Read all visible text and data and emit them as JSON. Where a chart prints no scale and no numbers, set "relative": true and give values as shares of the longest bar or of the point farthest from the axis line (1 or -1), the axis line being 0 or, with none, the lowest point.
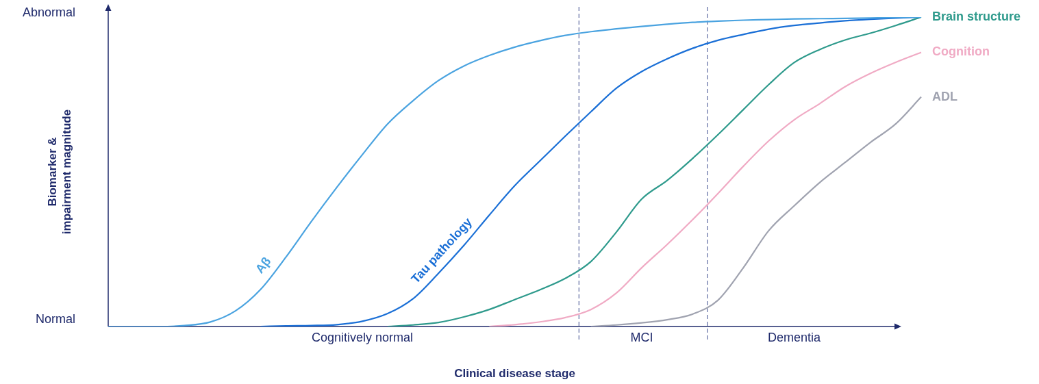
{
  "chart_data": {
    "type": "line",
    "relative": true,
    "xlabel": "Clinical disease stage",
    "ylabel": "Biomarker & impairment magnitude",
    "categories": [
      null,
      null,
      null,
      null,
      null,
      null,
      null,
      null,
      null,
      null,
      "Cognitively normal",
      null,
      null,
      null,
      null,
      null,
      null,
      null,
      null,
      null,
      null,
      "MCI",
      null,
      null,
      null,
      null,
      null,
      "Dementia",
      null,
      null,
      null,
      null,
      null
    ],
    "annotations": [
      "Abnormal",
      "Normal"
    ],
    "grid": false,
    "legend": false,
    "marker": "none",
    "series": [
      {
        "name": "Aβ",
        "color": "#4aa3e0",
        "values": [
          0,
          0,
          0,
          0.003,
          0.014,
          0.05,
          0.12,
          0.225,
          0.34,
          0.45,
          0.555,
          0.655,
          0.73,
          0.795,
          0.842,
          0.876,
          0.903,
          0.924,
          0.941,
          0.953,
          0.962,
          0.97,
          0.977,
          0.983,
          0.987,
          0.99,
          0.992,
          0.994,
          0.995,
          0.996,
          0.997,
          0.999,
          1
        ]
      },
      {
        "name": "Tau pathology",
        "color": "#1a6fd6",
        "values": [
          null,
          null,
          null,
          null,
          null,
          null,
          0,
          0.002,
          0.003,
          0.006,
          0.017,
          0.042,
          0.09,
          0.172,
          0.262,
          0.36,
          0.455,
          0.536,
          0.616,
          0.694,
          0.77,
          0.824,
          0.865,
          0.899,
          0.925,
          0.944,
          0.961,
          0.973,
          0.981,
          0.988,
          0.993,
          0.997,
          1
        ]
      },
      {
        "name": "Brain structure",
        "color": "#2e9a8c",
        "values": [
          null,
          null,
          null,
          null,
          null,
          null,
          null,
          null,
          null,
          null,
          null,
          0,
          0.005,
          0.013,
          0.031,
          0.055,
          0.087,
          0.119,
          0.156,
          0.21,
          0.305,
          0.412,
          0.472,
          0.543,
          0.62,
          0.701,
          0.782,
          0.853,
          0.895,
          0.926,
          0.948,
          0.973,
          1
        ]
      },
      {
        "name": "Cognition",
        "color": "#f0aac4",
        "values": [
          null,
          null,
          null,
          null,
          null,
          null,
          null,
          null,
          null,
          null,
          null,
          null,
          null,
          null,
          null,
          0,
          0.006,
          0.015,
          0.029,
          0.055,
          0.108,
          0.19,
          0.265,
          0.345,
          0.43,
          0.518,
          0.6,
          0.668,
          0.72,
          0.775,
          0.818,
          0.854,
          0.886
        ]
      },
      {
        "name": "ADL",
        "color": "#a0a3b0",
        "values": [
          null,
          null,
          null,
          null,
          null,
          null,
          null,
          null,
          null,
          null,
          null,
          null,
          null,
          null,
          null,
          null,
          null,
          null,
          null,
          0,
          0.005,
          0.012,
          0.022,
          0.04,
          0.085,
          0.19,
          0.31,
          0.39,
          0.465,
          0.53,
          0.595,
          0.655,
          0.742
        ]
      }
    ]
  }
}
